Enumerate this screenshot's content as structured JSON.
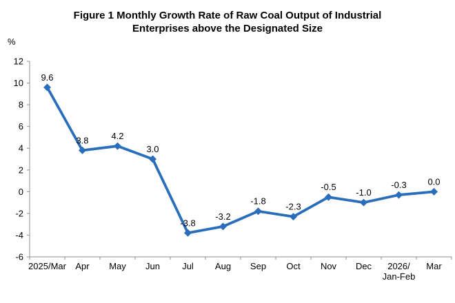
{
  "chart_data": {
    "type": "line",
    "title": "Figure 1 Monthly Growth Rate of Raw Coal Output of Industrial\nEnterprises above the Designated Size",
    "unit": "%",
    "categories": [
      "2025/Mar",
      "Apr",
      "May",
      "Jun",
      "Jul",
      "Aug",
      "Sep",
      "Oct",
      "Nov",
      "Dec",
      "2026/\nJan-Feb",
      "Mar"
    ],
    "values": [
      9.6,
      3.8,
      4.2,
      3.0,
      -3.8,
      -3.2,
      -1.8,
      -2.3,
      -0.5,
      -1.0,
      -0.3,
      0.0
    ],
    "data_labels": [
      "9.6",
      "3.8",
      "4.2",
      "3.0",
      "-3.8",
      "-3.2",
      "-1.8",
      "-2.3",
      "-0.5",
      "-1.0",
      "-0.3",
      "0.0"
    ],
    "yticks": [
      12,
      10,
      8,
      6,
      4,
      2,
      0,
      -2,
      -4,
      -6
    ],
    "ylim": [
      -6,
      12
    ],
    "grid": false,
    "legend": "none",
    "marker": "diamond",
    "line_color": "#2A6EBB",
    "axis_color": "#8C8C8C",
    "text_color": "#000000"
  }
}
